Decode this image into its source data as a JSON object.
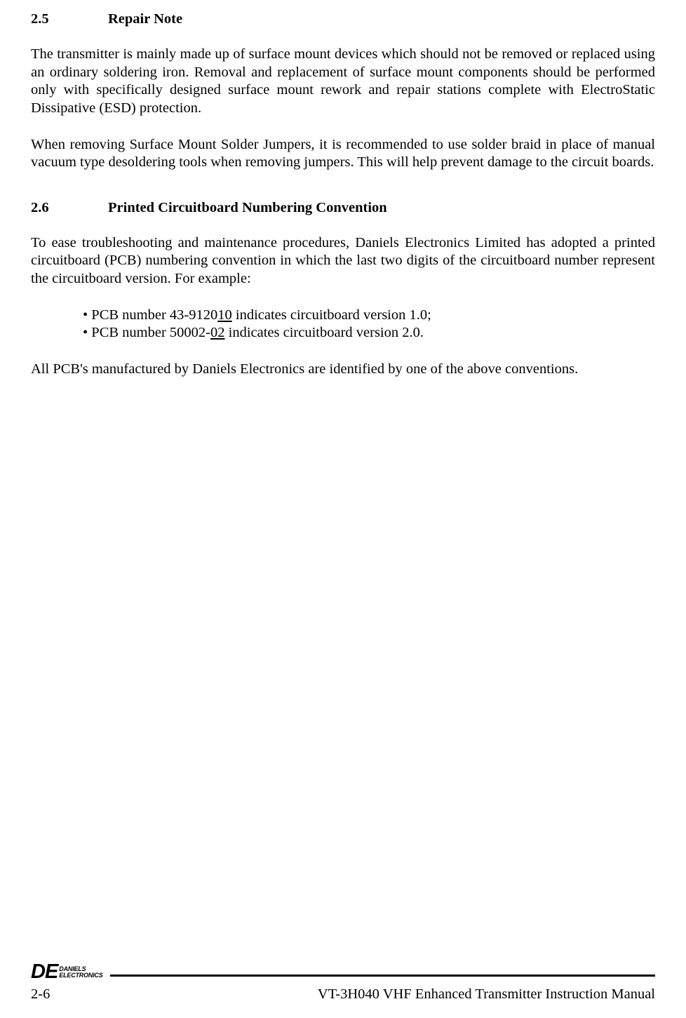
{
  "sections": {
    "s1": {
      "num": "2.5",
      "title": "Repair Note",
      "p1": "The transmitter is mainly made up of surface mount devices which should not be removed or replaced using an ordinary soldering iron.  Removal and replacement of surface mount components should be performed only with specifically designed surface mount rework and repair stations complete with ElectroStatic Dissipative (ESD) protection.",
      "p2": "When removing Surface Mount Solder Jumpers, it is recommended to use solder braid in place of manual vacuum type desoldering tools when removing jumpers.  This will help prevent damage to the circuit boards."
    },
    "s2": {
      "num": "2.6",
      "title": "Printed Circuitboard Numbering Convention",
      "p1": "To ease troubleshooting and maintenance procedures, Daniels Electronics Limited has adopted a printed circuitboard (PCB) numbering convention in which the last two digits of the circuitboard number represent the circuitboard version.  For example:",
      "b1a": "• PCB number 43-9120",
      "b1u": "10",
      "b1b": " indicates circuitboard version 1.0;",
      "b2a": "• PCB number 50002-",
      "b2u": "02",
      "b2b": " indicates circuitboard version 2.0.",
      "p2": "All PCB's manufactured by Daniels Electronics are identified by one of the above conventions."
    }
  },
  "footer": {
    "logo_de": "DE",
    "logo_line1": "DANIELS",
    "logo_line2": "ELECTRONICS",
    "page_num": "2-6",
    "doc_title": "VT-3H040 VHF Enhanced Transmitter Instruction Manual"
  }
}
